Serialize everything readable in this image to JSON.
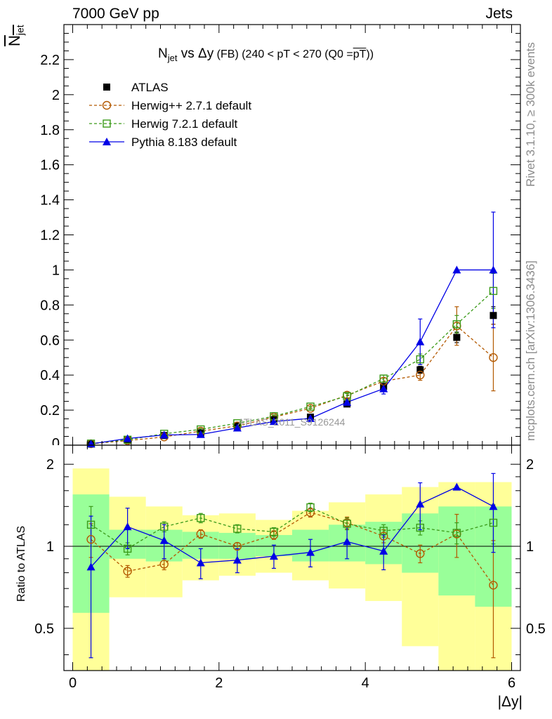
{
  "header": {
    "energy_label": "7000 GeV pp",
    "process_label": "Jets"
  },
  "side_labels": {
    "rivet": "Rivet 3.1.10, ≥ 300k events",
    "source": "mcplots.cern.ch [arXiv:1306.3436]"
  },
  "watermark": "ATLAS_2011_S9126244",
  "title": {
    "main": "N",
    "main_sub": "jet",
    "mid": " vs Δy",
    "tail": " (FB) (240 < pT < 270 (Q0 =",
    "tail_over": "pT",
    "tail_end": "))"
  },
  "ylabel_top": {
    "main": "N",
    "sub": "jet"
  },
  "ylabel_bottom": "Ratio to ATLAS",
  "xlabel": "|Δy|",
  "legend": [
    {
      "name": "ATLAS",
      "color": "#000000",
      "marker": "square-filled",
      "linestyle": "none"
    },
    {
      "name": "Herwig++ 2.7.1 default",
      "color": "#b35900",
      "marker": "circle-open",
      "linestyle": "dashed"
    },
    {
      "name": "Herwig 7.2.1 default",
      "color": "#3a9a18",
      "marker": "square-open",
      "linestyle": "dashed"
    },
    {
      "name": "Pythia 8.183 default",
      "color": "#0000e6",
      "marker": "triangle-filled",
      "linestyle": "solid"
    }
  ],
  "chart_data": [
    {
      "type": "line",
      "panel": "main",
      "title": "Njet vs Δy (FB) (240 < pT < 270 (Q0 = pT))",
      "xlabel": "|Δy|",
      "ylabel": "Njet",
      "xlim": [
        -0.12,
        6.12
      ],
      "ylim": [
        0,
        2.4
      ],
      "xticks": [
        0,
        2,
        4,
        6
      ],
      "xtick_labels": [
        "0",
        "2",
        "4",
        "6"
      ],
      "yticks": [
        0.2,
        0.4,
        0.6,
        0.8,
        1,
        1.2,
        1.4,
        1.6,
        1.8,
        2,
        2.2
      ],
      "ytick_labels": [
        "0.2",
        "0.4",
        "0.6",
        "0.8",
        "1",
        "1.2",
        "1.4",
        "1.6",
        "1.8",
        "2",
        "2.2"
      ],
      "ytick_zero_label": "0",
      "x": [
        0.25,
        0.75,
        1.25,
        1.75,
        2.25,
        2.75,
        3.25,
        3.75,
        4.25,
        4.75,
        5.25,
        5.75
      ],
      "series": [
        {
          "name": "ATLAS",
          "values": [
            0.008,
            0.032,
            0.055,
            0.07,
            0.11,
            0.145,
            0.16,
            0.235,
            0.335,
            0.43,
            0.615,
            0.74
          ],
          "errors": [
            0.002,
            0.003,
            0.004,
            0.005,
            0.006,
            0.007,
            0.008,
            0.01,
            0.015,
            0.02,
            0.03,
            0.05
          ]
        },
        {
          "name": "Herwig++ 2.7.1 default",
          "values": [
            0.008,
            0.026,
            0.047,
            0.08,
            0.11,
            0.16,
            0.21,
            0.285,
            0.365,
            0.4,
            0.68,
            0.5
          ],
          "errors": [
            0.002,
            0.003,
            0.004,
            0.005,
            0.006,
            0.008,
            0.01,
            0.015,
            0.02,
            0.03,
            0.11,
            0.19
          ]
        },
        {
          "name": "Herwig 7.2.1 default",
          "values": [
            0.009,
            0.031,
            0.065,
            0.09,
            0.125,
            0.165,
            0.22,
            0.28,
            0.38,
            0.49,
            0.69,
            0.88
          ],
          "errors": [
            0.002,
            0.003,
            0.004,
            0.005,
            0.006,
            0.008,
            0.01,
            0.015,
            0.02,
            0.03,
            0.05,
            0.1
          ]
        },
        {
          "name": "Pythia 8.183 default",
          "values": [
            0.007,
            0.038,
            0.058,
            0.061,
            0.098,
            0.135,
            0.153,
            0.245,
            0.322,
            0.59,
            1.0,
            1.0
          ],
          "errors": [
            0.002,
            0.004,
            0.005,
            0.006,
            0.008,
            0.01,
            0.012,
            0.02,
            0.03,
            0.13,
            0.0,
            0.33
          ]
        }
      ]
    },
    {
      "type": "line",
      "panel": "ratio",
      "ylabel": "Ratio to ATLAS",
      "xlabel": "|Δy|",
      "xlim": [
        -0.12,
        6.12
      ],
      "ylim": [
        0.35,
        2.35
      ],
      "yscale": "log",
      "yticks": [
        0.5,
        1,
        2
      ],
      "ytick_labels": [
        "0.5",
        "1",
        "2"
      ],
      "x": [
        0.25,
        0.75,
        1.25,
        1.75,
        2.25,
        2.75,
        3.25,
        3.75,
        4.25,
        4.75,
        5.25,
        5.75
      ],
      "bins": [
        [
          0,
          0.5
        ],
        [
          0.5,
          1
        ],
        [
          1,
          1.5
        ],
        [
          1.5,
          2
        ],
        [
          2,
          2.5
        ],
        [
          2.5,
          3
        ],
        [
          3,
          3.5
        ],
        [
          3.5,
          4
        ],
        [
          4,
          4.5
        ],
        [
          4.5,
          5
        ],
        [
          5,
          5.5
        ],
        [
          5.5,
          6
        ]
      ],
      "band_inner": [
        [
          0.57,
          1.55
        ],
        [
          0.9,
          1.15
        ],
        [
          0.88,
          1.15
        ],
        [
          0.9,
          1.13
        ],
        [
          0.9,
          1.12
        ],
        [
          0.92,
          1.1
        ],
        [
          0.88,
          1.15
        ],
        [
          0.88,
          1.2
        ],
        [
          0.86,
          1.23
        ],
        [
          0.8,
          1.32
        ],
        [
          0.66,
          1.4
        ],
        [
          0.6,
          1.4
        ]
      ],
      "band_outer": [
        [
          0.34,
          1.93
        ],
        [
          0.65,
          1.52
        ],
        [
          0.65,
          1.4
        ],
        [
          0.75,
          1.3
        ],
        [
          0.78,
          1.32
        ],
        [
          0.8,
          1.25
        ],
        [
          0.75,
          1.35
        ],
        [
          0.7,
          1.45
        ],
        [
          0.63,
          1.55
        ],
        [
          0.43,
          1.65
        ],
        [
          0.34,
          1.72
        ],
        [
          0.34,
          1.72
        ]
      ],
      "reference": 1,
      "series": [
        {
          "name": "Herwig++ 2.7.1 default",
          "values": [
            1.06,
            0.81,
            0.86,
            1.11,
            1.0,
            1.1,
            1.33,
            1.22,
            1.09,
            0.94,
            1.11,
            0.72
          ],
          "errors": [
            0.15,
            0.04,
            0.04,
            0.04,
            0.03,
            0.04,
            0.05,
            0.06,
            0.06,
            0.07,
            0.2,
            0.33
          ]
        },
        {
          "name": "Herwig 7.2.1 default",
          "values": [
            1.2,
            0.98,
            1.18,
            1.27,
            1.16,
            1.13,
            1.39,
            1.21,
            1.14,
            1.17,
            1.12,
            1.22
          ],
          "errors": [
            0.2,
            0.05,
            0.05,
            0.05,
            0.04,
            0.04,
            0.05,
            0.06,
            0.06,
            0.07,
            0.1,
            0.2
          ]
        },
        {
          "name": "Pythia 8.183 default",
          "values": [
            0.84,
            1.18,
            1.05,
            0.87,
            0.89,
            0.92,
            0.95,
            1.04,
            0.96,
            1.43,
            1.65,
            1.4
          ],
          "errors": [
            0.45,
            0.2,
            0.15,
            0.11,
            0.09,
            0.09,
            0.11,
            0.14,
            0.14,
            0.28,
            0.0,
            0.45
          ]
        }
      ]
    }
  ]
}
